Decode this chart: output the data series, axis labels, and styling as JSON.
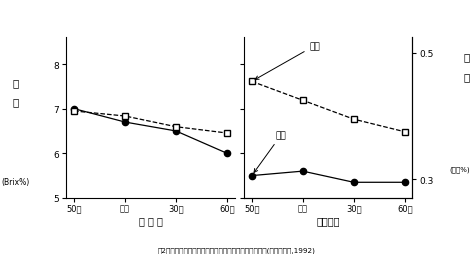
{
  "x_labels": [
    "50増",
    "標準",
    "30減",
    "60減"
  ],
  "momotaro_sugar": [
    7.0,
    6.7,
    6.5,
    6.0
  ],
  "momotaro_acid": [
    0.408,
    0.4,
    0.383,
    0.373
  ],
  "flora_sugar": [
    5.5,
    5.6,
    5.35,
    5.35
  ],
  "flora_acid": [
    0.455,
    0.425,
    0.395,
    0.375
  ],
  "ylim_sugar": [
    5.0,
    8.6
  ],
  "ylim_acid": [
    0.27,
    0.525
  ],
  "yticks_sugar": [
    5.0,
    6.0,
    7.0,
    8.0
  ],
  "yticks_acid_vals": [
    0.3,
    0.5
  ],
  "yticks_acid_labels": [
    "0.3",
    "0.5"
  ],
  "xlabel_left": "桃 太 郎",
  "xlabel_right": "フローラ",
  "title": "図2　施肥量低減条件における自根トマトの糖度、酸度(隔離床栽培,1992)",
  "background_color": "#ffffff",
  "line_color": "#000000"
}
